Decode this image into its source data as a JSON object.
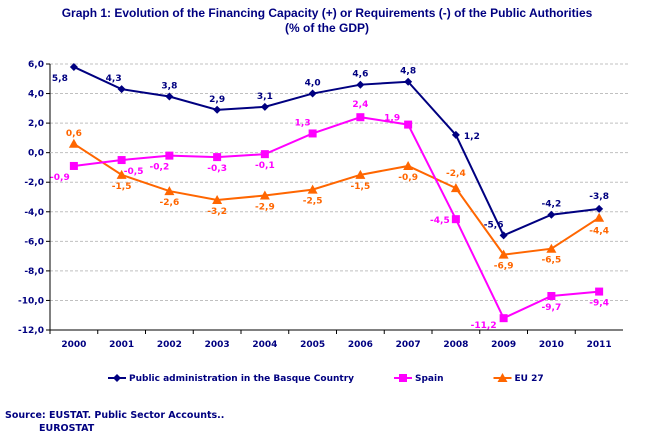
{
  "chart_data": {
    "type": "line",
    "title": "Graph 1: Evolution of the Financing Capacity (+) or Requirements (-) of the Public Authorities",
    "subtitle": "(% of the GDP)",
    "categories": [
      "2000",
      "2001",
      "2002",
      "2003",
      "2004",
      "2005",
      "2006",
      "2007",
      "2008",
      "2009",
      "2010",
      "2011"
    ],
    "ylim": [
      -12,
      6
    ],
    "yticks": [
      "6,0",
      "4,0",
      "2,0",
      "0,0",
      "-2,0",
      "-4,0",
      "-6,0",
      "-8,0",
      "-10,0",
      "-12,0"
    ],
    "grid": true,
    "legend_position": "bottom",
    "series": [
      {
        "name": "Public administration in the Basque Country",
        "color": "#000080",
        "marker": "diamond",
        "values": [
          5.8,
          4.3,
          3.8,
          2.9,
          3.1,
          4.0,
          4.6,
          4.8,
          1.2,
          -5.6,
          -4.2,
          -3.8
        ],
        "labels": [
          "5,8",
          "4,3",
          "3,8",
          "2,9",
          "3,1",
          "4,0",
          "4,6",
          "4,8",
          "1,2",
          "-5,6",
          "-4,2",
          "-3,8"
        ]
      },
      {
        "name": "Spain",
        "color": "#FF00FF",
        "marker": "square",
        "values": [
          -0.9,
          -0.5,
          -0.2,
          -0.3,
          -0.1,
          1.3,
          2.4,
          1.9,
          -4.5,
          -11.2,
          -9.7,
          -9.4
        ],
        "labels": [
          "-0,9",
          "-0,5",
          "-0,2",
          "-0,3",
          "-0,1",
          "1,3",
          "2,4",
          "1,9",
          "-4,5",
          "-11,2",
          "-9,7",
          "-9,4"
        ]
      },
      {
        "name": "EU 27",
        "color": "#FF6600",
        "marker": "triangle",
        "values": [
          0.6,
          -1.5,
          -2.6,
          -3.2,
          -2.9,
          -2.5,
          -1.5,
          -0.9,
          -2.4,
          -6.9,
          -6.5,
          -4.4
        ],
        "labels": [
          "0,6",
          "-1,5",
          "-2,6",
          "-3,2",
          "-2,9",
          "-2,5",
          "-1,5",
          "-0,9",
          "-2,4",
          "-6,9",
          "-6,5",
          "-4,4"
        ]
      }
    ]
  },
  "source": {
    "line1": "Source: EUSTAT. Public Sector Accounts..",
    "line2": "EUROSTAT"
  }
}
